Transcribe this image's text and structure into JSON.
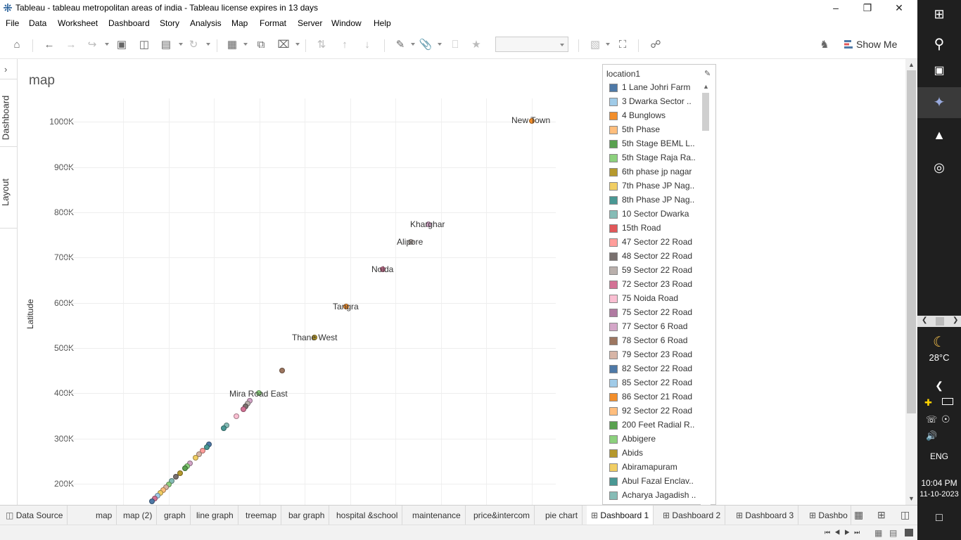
{
  "window": {
    "title": "Tableau - tableau metropolitan areas of india - Tableau license expires in 13 days"
  },
  "menu": [
    "File",
    "Data",
    "Worksheet",
    "Dashboard",
    "Story",
    "Analysis",
    "Map",
    "Format",
    "Server",
    "Window",
    "Help"
  ],
  "toolbar": {
    "show_me_label": "Show Me"
  },
  "side_tabs": {
    "dashboard": "Dashboard",
    "layout": "Layout"
  },
  "sheet": {
    "title": "map",
    "y_axis_label": "Latitude"
  },
  "chart_data": {
    "type": "scatter",
    "ylabel": "Latitude",
    "y_ticks": [
      "200K",
      "300K",
      "400K",
      "500K",
      "600K",
      "700K",
      "800K",
      "900K",
      "1000K"
    ],
    "labeled_points": [
      {
        "label": "New Town",
        "y": 1000000
      },
      {
        "label": "Kharghar",
        "y": 775000
      },
      {
        "label": "Alipore",
        "y": 737000
      },
      {
        "label": "Noida",
        "y": 676000
      },
      {
        "label": "Tangra",
        "y": 593000
      },
      {
        "label": "Thane West",
        "y": 524000
      },
      {
        "label": "Mira Road East",
        "y": 400000
      }
    ]
  },
  "legend": {
    "title": "location1",
    "items": [
      {
        "label": "1 Lane Johri Farm",
        "color": "#4e79a7"
      },
      {
        "label": "3 Dwarka Sector ..",
        "color": "#a0cbe8"
      },
      {
        "label": "4 Bunglows",
        "color": "#f28e2b"
      },
      {
        "label": "5th Phase",
        "color": "#ffbe7d"
      },
      {
        "label": "5th Stage BEML L..",
        "color": "#59a14f"
      },
      {
        "label": "5th Stage Raja Ra..",
        "color": "#8cd17d"
      },
      {
        "label": "6th phase jp nagar",
        "color": "#b6992d"
      },
      {
        "label": "7th Phase JP Nag..",
        "color": "#f1ce63"
      },
      {
        "label": "8th Phase JP Nag..",
        "color": "#499894"
      },
      {
        "label": "10 Sector Dwarka",
        "color": "#86bcb6"
      },
      {
        "label": "15th Road",
        "color": "#e15759"
      },
      {
        "label": "47 Sector 22 Road",
        "color": "#ff9d9a"
      },
      {
        "label": "48 Sector 22 Road",
        "color": "#79706e"
      },
      {
        "label": "59 Sector 22 Road",
        "color": "#bab0ac"
      },
      {
        "label": "72 Sector 23 Road",
        "color": "#d37295"
      },
      {
        "label": "75 Noida Road",
        "color": "#fabfd2"
      },
      {
        "label": "75 Sector 22 Road",
        "color": "#b07aa1"
      },
      {
        "label": "77 Sector 6 Road",
        "color": "#d4a6c8"
      },
      {
        "label": "78 Sector 6 Road",
        "color": "#9d7660"
      },
      {
        "label": "79 Sector 23 Road",
        "color": "#d7b5a6"
      },
      {
        "label": "82 Sector 22 Road",
        "color": "#4e79a7"
      },
      {
        "label": "85 Sector 22 Road",
        "color": "#a0cbe8"
      },
      {
        "label": "86 Sector 21 Road",
        "color": "#f28e2b"
      },
      {
        "label": "92 Sector 22 Road",
        "color": "#ffbe7d"
      },
      {
        "label": "200 Feet Radial R..",
        "color": "#59a14f"
      },
      {
        "label": "Abbigere",
        "color": "#8cd17d"
      },
      {
        "label": "Abids",
        "color": "#b6992d"
      },
      {
        "label": "Abiramapuram",
        "color": "#f1ce63"
      },
      {
        "label": "Abul Fazal Enclav..",
        "color": "#499894"
      },
      {
        "label": "Acharya Jagadish ..",
        "color": "#86bcb6"
      }
    ]
  },
  "sheet_tabs": [
    {
      "label": "Data Source",
      "type": "source"
    },
    {
      "label": "map",
      "type": "sheet"
    },
    {
      "label": "map (2)",
      "type": "sheet"
    },
    {
      "label": "graph",
      "type": "sheet"
    },
    {
      "label": "line graph",
      "type": "sheet"
    },
    {
      "label": "treemap",
      "type": "sheet"
    },
    {
      "label": "bar graph",
      "type": "sheet"
    },
    {
      "label": "hospital &school",
      "type": "sheet"
    },
    {
      "label": "maintenance",
      "type": "sheet"
    },
    {
      "label": "price&intercom",
      "type": "sheet"
    },
    {
      "label": "pie chart",
      "type": "sheet"
    },
    {
      "label": "Dashboard 1",
      "type": "dashboard",
      "active": true
    },
    {
      "label": "Dashboard 2",
      "type": "dashboard"
    },
    {
      "label": "Dashboard 3",
      "type": "dashboard"
    },
    {
      "label": "Dashbo",
      "type": "dashboard"
    }
  ],
  "taskbar": {
    "weather_temp": "28°C",
    "language": "ENG",
    "time": "10:04 PM",
    "date": "11-10-2023"
  }
}
